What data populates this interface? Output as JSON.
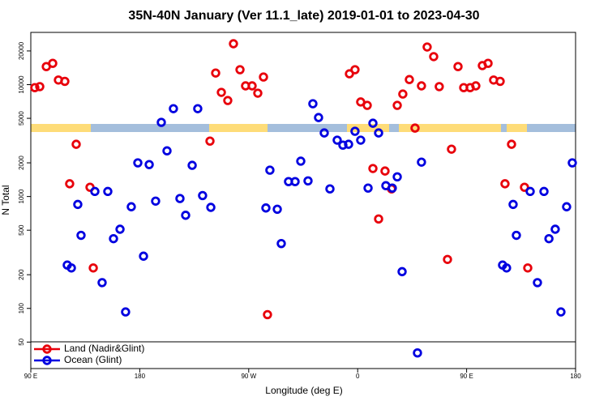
{
  "chart_data": {
    "type": "scatter",
    "title": "35N-40N January (Ver 11.1_late)   2019-01-01 to 2023-04-30",
    "x_label": "Longitude (deg E)",
    "y_label": "N Total",
    "xlim": [
      90,
      540
    ],
    "xticks": [
      {
        "value": 90,
        "label": "90 E"
      },
      180,
      {
        "value": 270,
        "label": "90 W"
      },
      {
        "value": 360,
        "label": "0"
      },
      {
        "value": 450,
        "label": "90 E"
      },
      {
        "value": 540,
        "label": "180"
      }
    ],
    "ylim": [
      29,
      29300
    ],
    "yticks": [
      50,
      100,
      200,
      500,
      1000,
      2000,
      5000,
      10000,
      20000
    ],
    "log_y": true,
    "legend": "bottomleft",
    "series": [
      {
        "name": "Land (Nadir&Glint)",
        "color": "#e8000b",
        "x": [
          93.3,
          97.4,
          102.8,
          108.1,
          112.8,
          118.1,
          127.5,
          122.1,
          138.9,
          141.6,
          238.0,
          242.7,
          247.4,
          252.7,
          257.4,
          262.8,
          267.4,
          272.8,
          277.5,
          282.2,
          285.5,
          353.2,
          357.8,
          362.5,
          367.9,
          372.6,
          377.3,
          382.6,
          388.0,
          392.7,
          397.3,
          402.7,
          407.4,
          412.7,
          417.4,
          422.8,
          427.4,
          437.5,
          434.2,
          442.9,
          447.6,
          452.9,
          457.6,
          463.0,
          467.7,
          472.3,
          477.7,
          487.1,
          481.7,
          497.8,
          500.5
        ],
        "values": [
          9400,
          9600,
          14500,
          15500,
          11000,
          10700,
          2930,
          1300,
          1210,
          230,
          3130,
          12700,
          8530,
          7210,
          23200,
          13600,
          9750,
          9750,
          8390,
          11700,
          88,
          12500,
          13600,
          7000,
          6530,
          1780,
          630,
          1690,
          1170,
          6530,
          8240,
          11100,
          4090,
          9750,
          21700,
          17800,
          9600,
          2650,
          274,
          14500,
          9400,
          9400,
          9750,
          14800,
          15500,
          11000,
          10700,
          2930,
          1300,
          1210,
          230
        ]
      },
      {
        "name": "Ocean (Glint)",
        "color": "#0000e0",
        "x": [
          120.1,
          123.5,
          128.8,
          131.5,
          142.9,
          148.9,
          153.6,
          158.3,
          163.7,
          168.3,
          173.0,
          178.4,
          183.1,
          187.8,
          193.1,
          197.8,
          202.5,
          207.8,
          213.2,
          217.9,
          223.3,
          227.9,
          231.9,
          238.7,
          284.2,
          287.5,
          293.6,
          296.9,
          302.9,
          308.3,
          313.0,
          319.0,
          323.0,
          327.7,
          332.4,
          337.1,
          343.1,
          347.8,
          352.5,
          357.8,
          362.5,
          368.6,
          372.6,
          377.3,
          383.3,
          388.6,
          392.7,
          396.7,
          409.4,
          412.7,
          479.7,
          483.0,
          488.4,
          491.1,
          502.5,
          508.5,
          513.9,
          518.0,
          523.2,
          527.9,
          532.6,
          537.3
        ],
        "values": [
          244,
          230,
          850,
          450,
          1110,
          170,
          1110,
          420,
          510,
          93,
          810,
          2000,
          293,
          1930,
          910,
          4600,
          2560,
          6100,
          960,
          680,
          1900,
          6100,
          1020,
          800,
          790,
          1720,
          770,
          380,
          1360,
          1360,
          2070,
          1380,
          6750,
          5080,
          3700,
          1170,
          3190,
          2880,
          2930,
          3830,
          3190,
          1190,
          4520,
          3700,
          1250,
          1190,
          1500,
          213,
          40,
          2030,
          244,
          230,
          850,
          450,
          1110,
          170,
          1110,
          420,
          510,
          93,
          810,
          2000
        ]
      }
    ]
  }
}
